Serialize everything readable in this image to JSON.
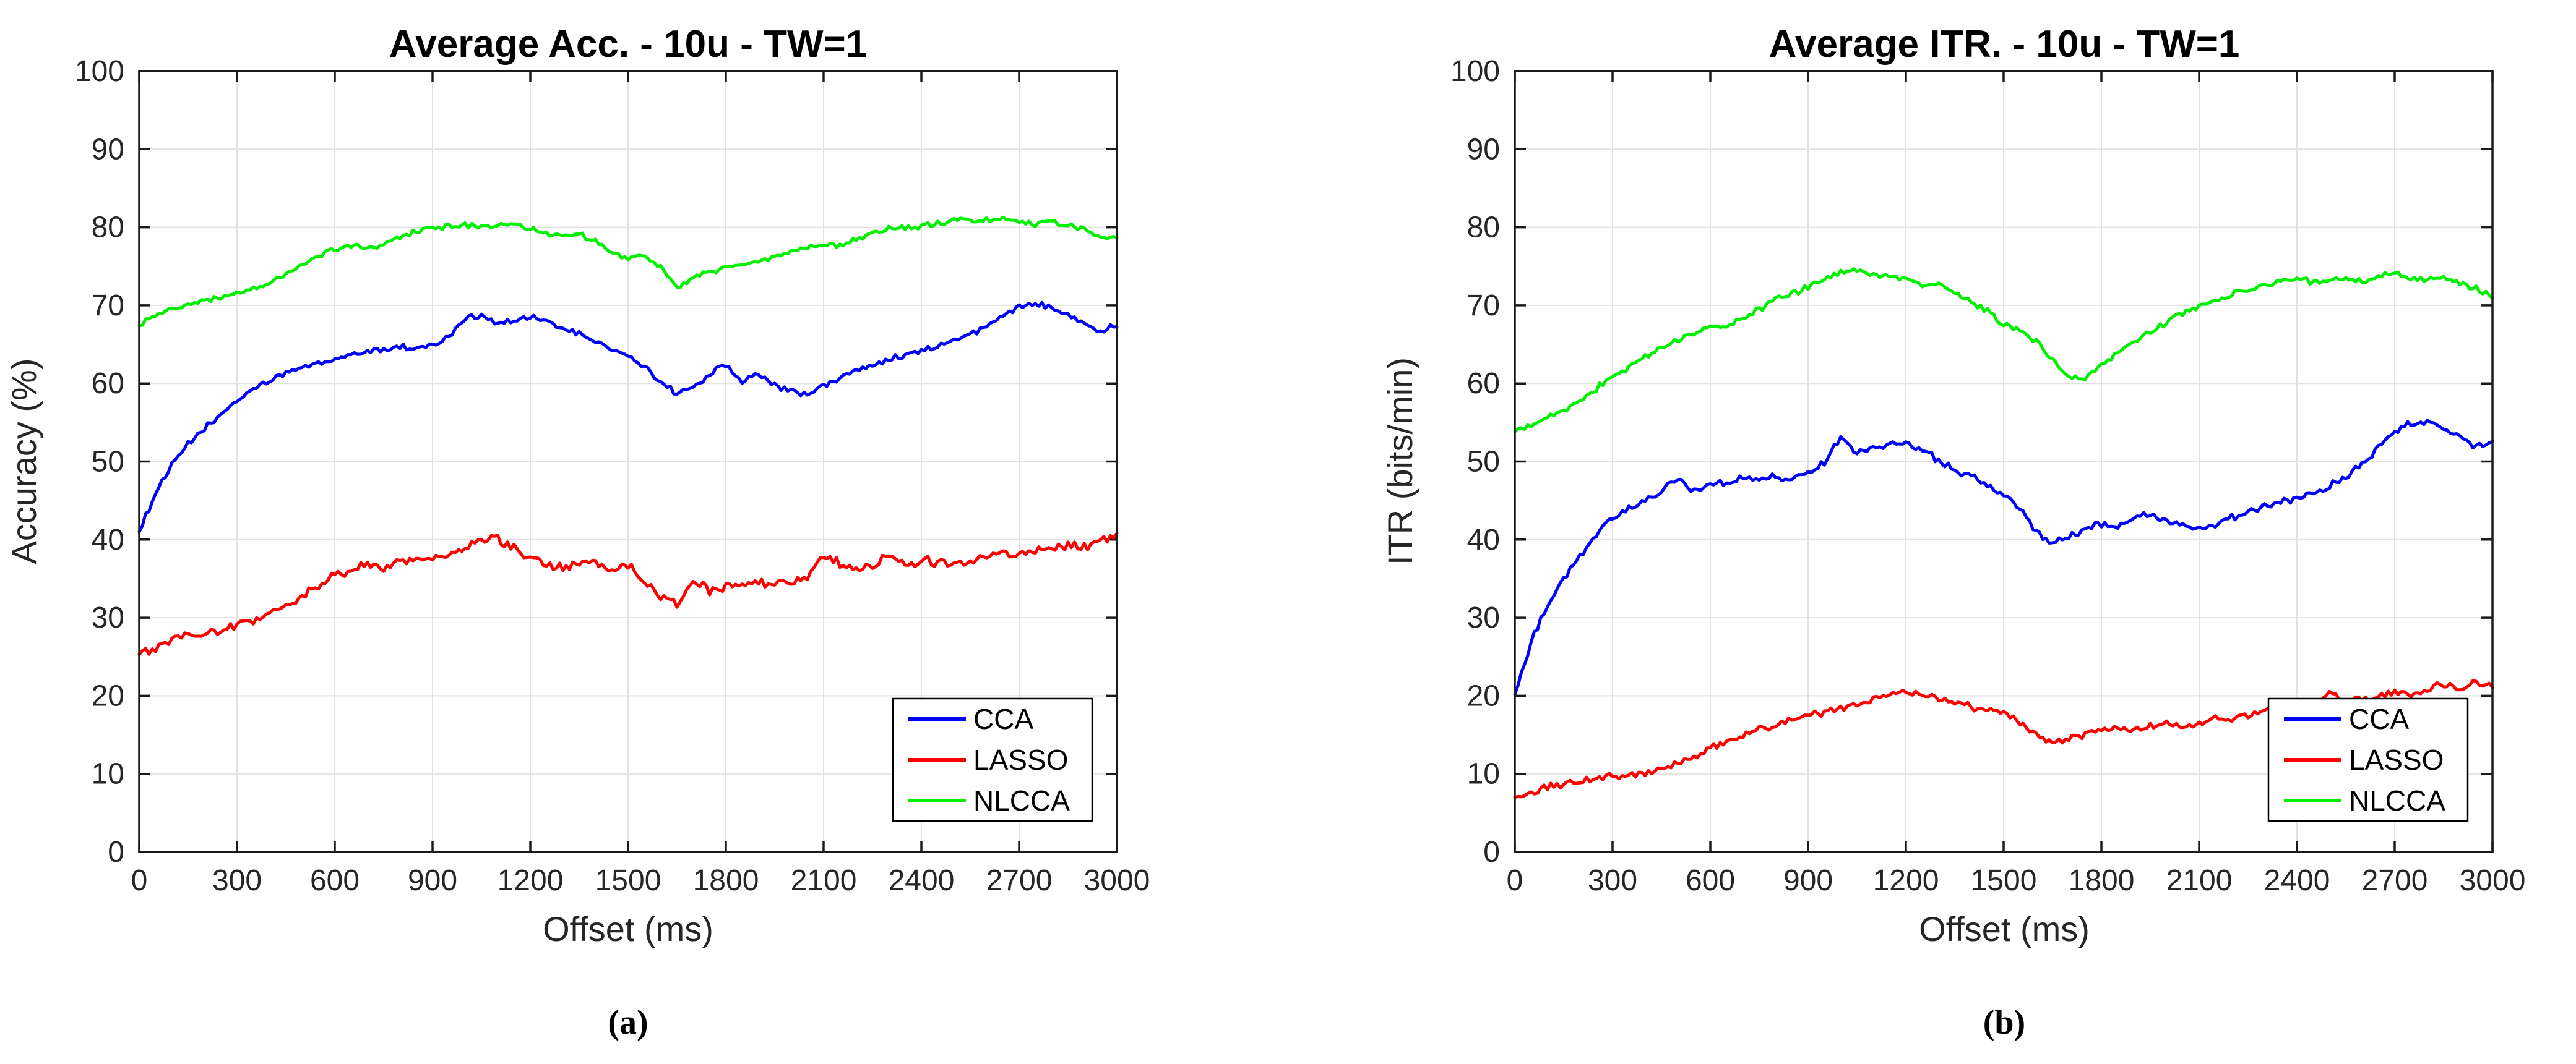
{
  "figure": {
    "type": "dual-panel-line-figure",
    "background": "#ffffff"
  },
  "chart_data": [
    {
      "type": "line",
      "title": "Average Acc. - 10u - TW=1",
      "xlabel": "Offset (ms)",
      "ylabel": "Accuracy (%)",
      "caption": "(a)",
      "xlim": [
        0,
        3000
      ],
      "ylim": [
        0,
        100
      ],
      "xticks": [
        0,
        300,
        600,
        900,
        1200,
        1500,
        1800,
        2100,
        2400,
        2700,
        3000
      ],
      "yticks": [
        0,
        10,
        20,
        30,
        40,
        50,
        60,
        70,
        80,
        90,
        100
      ],
      "grid": true,
      "legend_position": "lower-right-inside",
      "style": {
        "grid_color": "#e2e2e2",
        "axis_color": "#1a1a1a",
        "tick_label_color": "#262626"
      },
      "x_step": 50,
      "series": [
        {
          "name": "CCA",
          "color": "#0000ff",
          "jitter": 0.3,
          "values": [
            41.0,
            46.0,
            49.5,
            52.2,
            54.2,
            56.0,
            57.8,
            59.2,
            60.4,
            61.3,
            62.0,
            62.6,
            63.1,
            63.6,
            64.1,
            64.4,
            64.7,
            64.5,
            64.9,
            66.0,
            68.3,
            68.8,
            67.7,
            68.0,
            68.4,
            67.9,
            67.1,
            66.3,
            65.4,
            64.4,
            63.4,
            62.2,
            60.2,
            58.7,
            59.4,
            61.3,
            62.4,
            60.3,
            61.1,
            59.9,
            58.9,
            58.6,
            59.6,
            60.7,
            61.7,
            62.5,
            63.1,
            63.6,
            64.2,
            64.8,
            65.5,
            66.3,
            67.3,
            68.5,
            69.8,
            70.3,
            69.9,
            68.9,
            67.7,
            66.7,
            67.5
          ]
        },
        {
          "name": "LASSO",
          "color": "#ff0000",
          "jitter": 0.5,
          "values": [
            25.3,
            26.2,
            27.1,
            27.7,
            28.1,
            28.4,
            29.1,
            29.8,
            30.6,
            31.6,
            32.8,
            34.2,
            35.4,
            36.2,
            36.7,
            36.4,
            36.9,
            37.3,
            37.7,
            38.3,
            39.2,
            39.8,
            40.3,
            38.9,
            37.7,
            36.7,
            36.4,
            36.9,
            37.2,
            36.3,
            36.7,
            34.6,
            32.7,
            31.5,
            34.7,
            33.3,
            33.9,
            34.3,
            34.7,
            34.4,
            34.8,
            35.2,
            38.0,
            36.8,
            36.2,
            36.6,
            37.9,
            36.9,
            37.2,
            37.0,
            36.8,
            37.3,
            37.9,
            38.3,
            38.0,
            38.5,
            39.0,
            39.4,
            39.1,
            39.8,
            40.3
          ]
        },
        {
          "name": "NLCCA",
          "color": "#00f000",
          "jitter": 0.28,
          "values": [
            67.4,
            68.6,
            69.5,
            70.1,
            70.6,
            71.0,
            71.4,
            72.0,
            72.8,
            74.0,
            75.2,
            76.2,
            77.2,
            77.7,
            77.3,
            77.9,
            78.7,
            79.4,
            79.9,
            80.1,
            80.2,
            80.1,
            80.3,
            80.4,
            79.9,
            79.2,
            78.9,
            79.1,
            78.2,
            76.9,
            76.1,
            76.3,
            74.9,
            72.4,
            73.5,
            74.2,
            74.8,
            75.0,
            75.5,
            76.2,
            76.9,
            77.4,
            78.0,
            77.7,
            78.5,
            79.3,
            79.9,
            80.1,
            80.2,
            80.5,
            80.8,
            81.0,
            80.8,
            81.1,
            80.7,
            80.4,
            80.6,
            80.2,
            79.9,
            78.7,
            78.9
          ]
        }
      ]
    },
    {
      "type": "line",
      "title": "Average ITR. - 10u - TW=1",
      "xlabel": "Offset (ms)",
      "ylabel": "ITR (bits/min)",
      "caption": "(b)",
      "xlim": [
        0,
        3000
      ],
      "ylim": [
        0,
        100
      ],
      "xticks": [
        0,
        300,
        600,
        900,
        1200,
        1500,
        1800,
        2100,
        2400,
        2700,
        3000
      ],
      "yticks": [
        0,
        10,
        20,
        30,
        40,
        50,
        60,
        70,
        80,
        90,
        100
      ],
      "grid": true,
      "legend_position": "lower-right-inside",
      "style": {
        "grid_color": "#e2e2e2",
        "axis_color": "#1a1a1a",
        "tick_label_color": "#262626"
      },
      "x_step": 50,
      "series": [
        {
          "name": "CCA",
          "color": "#0000ff",
          "jitter": 0.35,
          "values": [
            20.2,
            27.0,
            31.5,
            35.0,
            38.0,
            40.5,
            42.8,
            44.0,
            45.0,
            46.2,
            47.6,
            46.3,
            47.0,
            47.4,
            47.8,
            47.5,
            48.1,
            47.7,
            48.5,
            49.8,
            53.4,
            51.0,
            51.8,
            52.1,
            52.3,
            51.6,
            50.1,
            48.8,
            48.1,
            46.9,
            45.7,
            44.2,
            40.9,
            39.6,
            40.5,
            41.3,
            42.1,
            41.5,
            42.7,
            43.3,
            42.3,
            41.7,
            41.3,
            42.1,
            42.9,
            43.5,
            44.1,
            44.7,
            45.3,
            46.0,
            46.9,
            48.1,
            49.7,
            51.7,
            53.7,
            54.9,
            55.1,
            54.3,
            53.1,
            51.9,
            52.5
          ]
        },
        {
          "name": "LASSO",
          "color": "#ff0000",
          "jitter": 0.35,
          "values": [
            7.0,
            7.6,
            8.2,
            8.7,
            9.1,
            9.4,
            9.7,
            9.9,
            10.1,
            10.6,
            11.4,
            12.2,
            13.2,
            14.2,
            15.0,
            15.6,
            16.3,
            16.9,
            17.4,
            17.8,
            18.3,
            18.7,
            19.5,
            20.3,
            20.7,
            20.1,
            19.6,
            19.1,
            18.6,
            18.1,
            17.9,
            16.7,
            14.9,
            13.9,
            14.5,
            15.0,
            15.5,
            16.1,
            15.7,
            16.1,
            16.5,
            16.1,
            16.6,
            17.0,
            17.2,
            17.6,
            18.0,
            18.4,
            19.0,
            18.4,
            20.3,
            19.2,
            19.6,
            20.0,
            20.6,
            20.1,
            21.0,
            21.5,
            20.9,
            21.9,
            21.2
          ]
        },
        {
          "name": "NLCCA",
          "color": "#00f000",
          "jitter": 0.32,
          "values": [
            53.8,
            54.6,
            55.8,
            56.4,
            57.6,
            59.4,
            61.0,
            62.0,
            63.4,
            64.6,
            65.6,
            66.4,
            67.0,
            67.3,
            68.3,
            69.5,
            70.7,
            71.5,
            72.3,
            73.3,
            74.1,
            74.4,
            74.1,
            73.8,
            73.4,
            72.4,
            72.7,
            71.8,
            70.4,
            69.2,
            67.6,
            66.8,
            65.4,
            63.0,
            60.9,
            60.4,
            62.5,
            63.9,
            65.4,
            66.7,
            67.9,
            69.0,
            69.9,
            70.5,
            71.4,
            72.0,
            72.5,
            73.0,
            73.4,
            72.9,
            73.2,
            73.5,
            73.1,
            73.8,
            74.0,
            73.6,
            73.2,
            73.7,
            72.8,
            72.2,
            71.0
          ]
        }
      ]
    }
  ]
}
